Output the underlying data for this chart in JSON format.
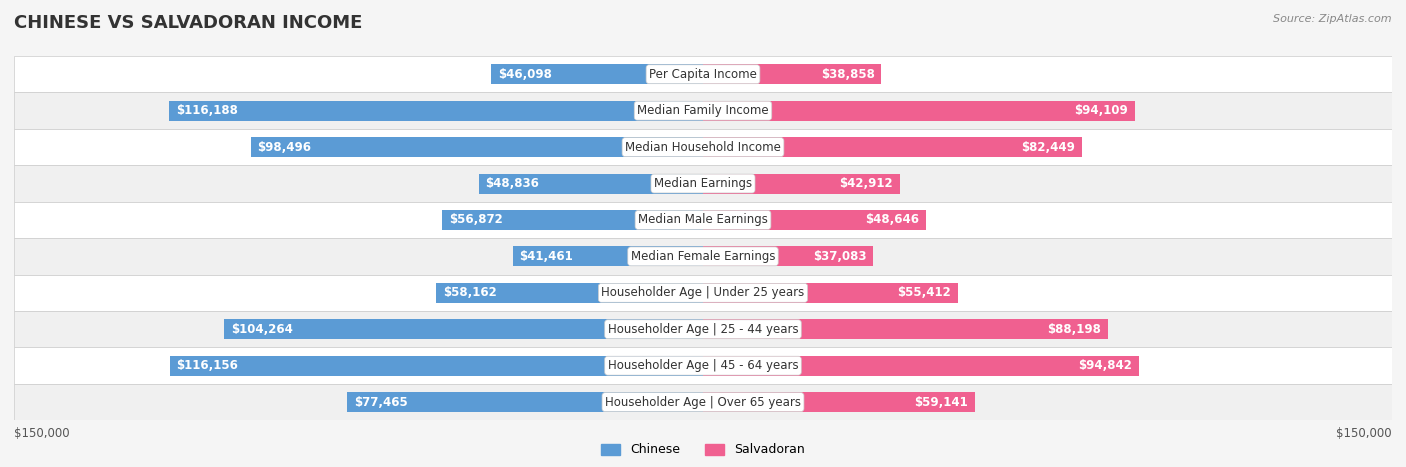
{
  "title": "CHINESE VS SALVADORAN INCOME",
  "source": "Source: ZipAtlas.com",
  "categories": [
    "Per Capita Income",
    "Median Family Income",
    "Median Household Income",
    "Median Earnings",
    "Median Male Earnings",
    "Median Female Earnings",
    "Householder Age | Under 25 years",
    "Householder Age | 25 - 44 years",
    "Householder Age | 45 - 64 years",
    "Householder Age | Over 65 years"
  ],
  "chinese_values": [
    46098,
    116188,
    98496,
    48836,
    56872,
    41461,
    58162,
    104264,
    116156,
    77465
  ],
  "salvadoran_values": [
    38858,
    94109,
    82449,
    42912,
    48646,
    37083,
    55412,
    88198,
    94842,
    59141
  ],
  "chinese_labels": [
    "$46,098",
    "$116,188",
    "$98,496",
    "$48,836",
    "$56,872",
    "$41,461",
    "$58,162",
    "$104,264",
    "$116,156",
    "$77,465"
  ],
  "salvadoran_labels": [
    "$38,858",
    "$94,109",
    "$82,449",
    "$42,912",
    "$48,646",
    "$37,083",
    "$55,412",
    "$88,198",
    "$94,842",
    "$59,141"
  ],
  "max_value": 150000,
  "chinese_color_light": "#a8c4e0",
  "chinese_color_dark": "#5b9bd5",
  "salvadoran_color_light": "#f4a0b8",
  "salvadoran_color_dark": "#f06090",
  "bg_color": "#f5f5f5",
  "row_bg": "#ffffff",
  "row_alt_bg": "#f0f0f0",
  "label_fontsize": 8.5,
  "title_fontsize": 13,
  "bar_height": 0.55,
  "threshold_dark_label": 20000
}
